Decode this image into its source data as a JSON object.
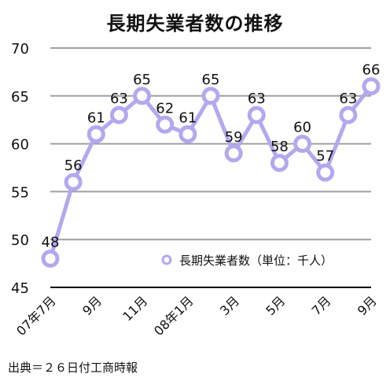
{
  "chart_data": {
    "type": "line",
    "title": "長期失業者数の推移",
    "source": "出典＝２６日付工商時報",
    "legend": {
      "label": "長期失業者数（単位：千人）",
      "position": "bottom-right"
    },
    "ylim": [
      45,
      70
    ],
    "yticks": [
      45,
      50,
      55,
      60,
      65,
      70
    ],
    "grid": true,
    "x_tick_labels": [
      "07年7月",
      "9月",
      "11月",
      "08年1月",
      "3月",
      "5月",
      "7月",
      "9月"
    ],
    "series": [
      {
        "name": "長期失業者数（単位：千人）",
        "color": "#b3a8f0",
        "values": [
          48,
          56,
          61,
          63,
          65,
          62,
          61,
          65,
          59,
          63,
          58,
          60,
          57,
          63,
          66
        ]
      }
    ]
  }
}
